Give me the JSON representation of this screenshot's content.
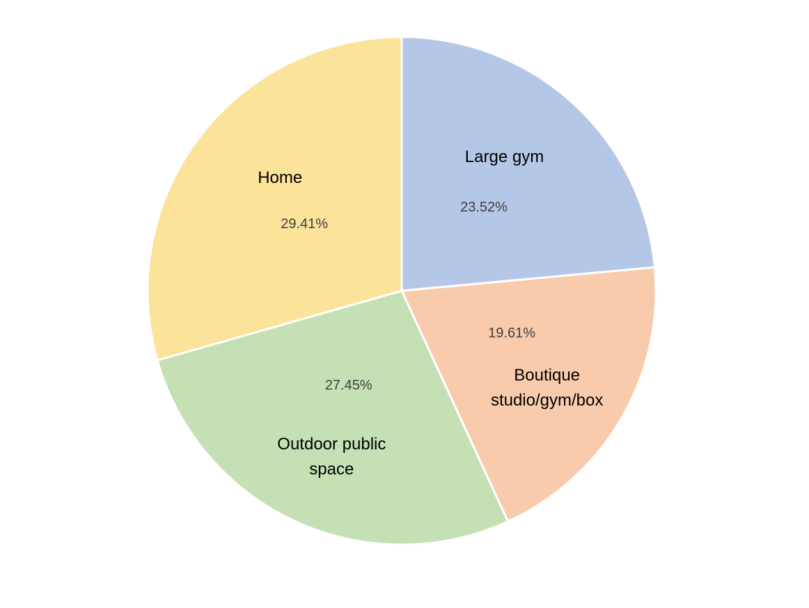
{
  "chart_data": {
    "type": "pie",
    "categories": [
      "Large gym",
      "Boutique studio/gym/box",
      "Outdoor public space",
      "Home"
    ],
    "values": [
      23.52,
      19.61,
      27.45,
      29.41
    ],
    "value_labels": [
      "23.52%",
      "19.61%",
      "27.45%",
      "29.41%"
    ],
    "colors": [
      "#b4c7e7",
      "#f8cbad",
      "#c5e0b4",
      "#fce39a"
    ]
  }
}
